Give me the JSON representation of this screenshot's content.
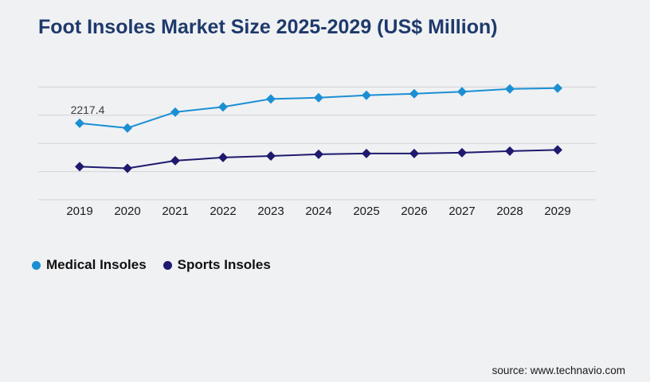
{
  "page": {
    "source": "source: www.technavio.com"
  },
  "colors": {
    "background": "#f0f1f3",
    "title_text": "#1e3a6c",
    "gridline": "#d2d3d6",
    "axis_label_text": "#1a1a1a",
    "annotation_text": "#3a3a3a",
    "medical_series": "#1b8fd4",
    "sports_series": "#1f1a6e"
  },
  "chart_data": {
    "type": "line",
    "title": "Foot Insoles Market Size 2025-2029 (US$ Million)",
    "categories": [
      "2019",
      "2020",
      "2021",
      "2022",
      "2023",
      "2024",
      "2025",
      "2026",
      "2027",
      "2028",
      "2029"
    ],
    "series": [
      {
        "name": "Medical Insoles",
        "color": "#1b8fd4",
        "marker": "diamond",
        "values": [
          2217.4,
          2079,
          2541,
          2691,
          2922,
          2957,
          3026,
          3072,
          3130,
          3211,
          3234
        ]
      },
      {
        "name": "Sports Insoles",
        "color": "#1f1a6e",
        "marker": "diamond",
        "values": [
          959,
          912,
          1132,
          1224,
          1270,
          1317,
          1340,
          1340,
          1363,
          1409,
          1444
        ]
      }
    ],
    "annotations": [
      {
        "series_index": 0,
        "category_index": 0,
        "text": "2217.4"
      }
    ],
    "xlabel": "",
    "ylabel": "",
    "ylim": [
      0,
      3266
    ],
    "y_tick_labels_visible": false,
    "gridlines": 5,
    "grid": "horizontal",
    "legend_position": "bottom-left"
  }
}
